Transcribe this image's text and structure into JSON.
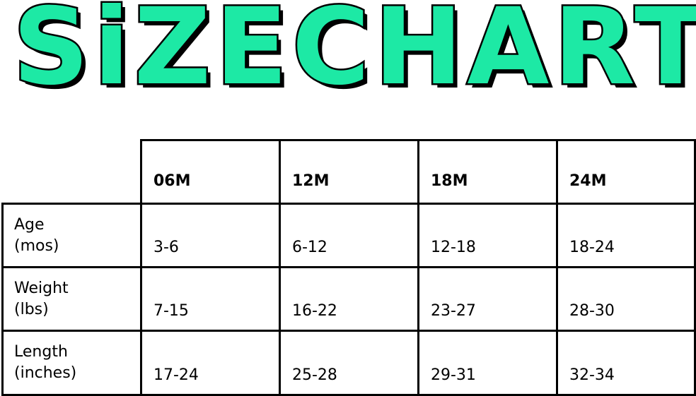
{
  "title": {
    "word1": "SiZE",
    "word2": "CHART",
    "color": "#1de9a5"
  },
  "table": {
    "columns": [
      "06M",
      "12M",
      "18M",
      "24M"
    ],
    "rows": [
      {
        "label_line1": "Age",
        "label_line2": "(mos)",
        "values": [
          "3-6",
          "6-12",
          "12-18",
          "18-24"
        ]
      },
      {
        "label_line1": "Weight",
        "label_line2": "(lbs)",
        "values": [
          "7-15",
          "16-22",
          "23-27",
          "28-30"
        ]
      },
      {
        "label_line1": "Length",
        "label_line2": "(inches)",
        "values": [
          "17-24",
          "25-28",
          "29-31",
          "32-34"
        ]
      }
    ]
  }
}
